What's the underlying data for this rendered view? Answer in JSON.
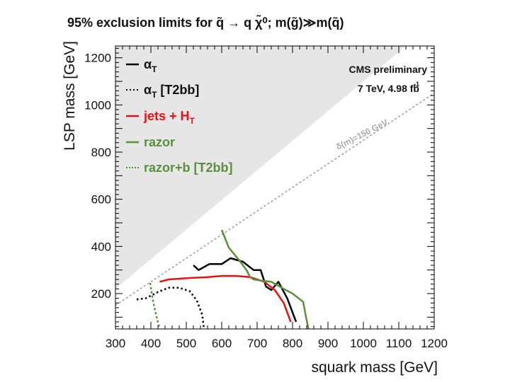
{
  "title": "95% exclusion limits for q̃ → q χ̃⁰; m(g̃)≫m(q̃)",
  "chart_data": {
    "type": "line",
    "title": "95% exclusion limits for q̃ → q χ̃⁰; m(g̃)≫m(q̃)",
    "xlabel": "squark mass [GeV]",
    "ylabel": "LSP mass [GeV]",
    "xlim": [
      300,
      1200
    ],
    "ylim": [
      50,
      1250
    ],
    "x_ticks": [
      "300",
      "400",
      "500",
      "600",
      "700",
      "800",
      "900",
      "1000",
      "1100",
      "1200"
    ],
    "y_ticks": [
      "200",
      "400",
      "600",
      "800",
      "1000",
      "1200"
    ],
    "annotation_main": "CMS preliminary",
    "annotation_energy": "7 TeV, 4.98 fb",
    "annotation_energy_sup": "-1",
    "diagonal_label": "δ(m)=150 GeV",
    "diagonal": {
      "x": [
        300,
        1200
      ],
      "y": [
        150,
        1050
      ]
    },
    "forbidden_region": {
      "x": [
        300,
        300,
        1120,
        300
      ],
      "y": [
        1250,
        220,
        1250,
        1250
      ]
    },
    "legend": [
      {
        "label": "α",
        "sub": "T",
        "rest": "",
        "color": "#000000",
        "style": "solid"
      },
      {
        "label": "α",
        "sub": "T",
        "rest": " [T2bb]",
        "color": "#000000",
        "style": "dotted"
      },
      {
        "label": "jets + H",
        "sub": "T",
        "rest": "",
        "color": "#e81010",
        "style": "solid"
      },
      {
        "label": "razor",
        "sub": "",
        "rest": "",
        "color": "#5a8f3c",
        "style": "solid"
      },
      {
        "label": "razor+b [T2bb]",
        "sub": "",
        "rest": "",
        "color": "#5a8f3c",
        "style": "dashed"
      }
    ],
    "series": [
      {
        "name": "alpha_T",
        "color": "#000000",
        "style": "solid",
        "x": [
          520,
          535,
          565,
          600,
          625,
          660,
          690,
          710,
          725,
          740,
          760,
          785,
          810
        ],
        "y": [
          320,
          300,
          325,
          325,
          350,
          335,
          300,
          300,
          230,
          215,
          250,
          180,
          80
        ]
      },
      {
        "name": "alpha_T [T2bb]",
        "color": "#000000",
        "style": "dotted",
        "x": [
          360,
          385,
          405,
          425,
          450,
          480,
          510,
          530,
          545,
          550
        ],
        "y": [
          175,
          180,
          195,
          210,
          225,
          225,
          210,
          170,
          110,
          50
        ]
      },
      {
        "name": "jets + HT",
        "color": "#e81010",
        "style": "solid",
        "x": [
          425,
          450,
          500,
          560,
          600,
          640,
          680,
          720,
          750,
          775,
          795
        ],
        "y": [
          250,
          260,
          265,
          270,
          275,
          275,
          270,
          250,
          215,
          160,
          80
        ]
      },
      {
        "name": "razor",
        "color": "#5a8f3c",
        "style": "solid",
        "x": [
          600,
          620,
          650,
          670,
          680,
          690,
          710,
          740,
          775,
          800,
          830,
          838,
          845
        ],
        "y": [
          470,
          395,
          340,
          300,
          270,
          260,
          255,
          250,
          220,
          200,
          165,
          100,
          50
        ]
      },
      {
        "name": "razor+b [T2bb]",
        "color": "#5a8f3c",
        "style": "dashed",
        "x": [
          398,
          403,
          410,
          418,
          425
        ],
        "y": [
          245,
          195,
          140,
          90,
          50
        ]
      }
    ]
  }
}
